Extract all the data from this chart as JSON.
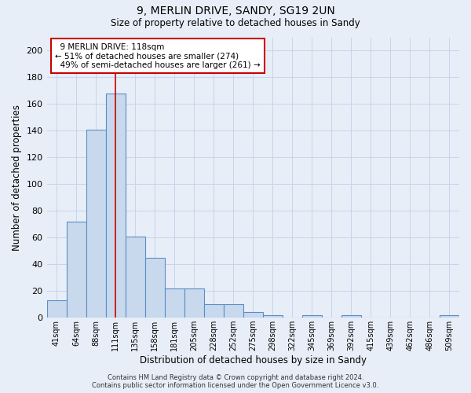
{
  "title1": "9, MERLIN DRIVE, SANDY, SG19 2UN",
  "title2": "Size of property relative to detached houses in Sandy",
  "xlabel": "Distribution of detached houses by size in Sandy",
  "ylabel": "Number of detached properties",
  "bar_labels": [
    "41sqm",
    "64sqm",
    "88sqm",
    "111sqm",
    "135sqm",
    "158sqm",
    "181sqm",
    "205sqm",
    "228sqm",
    "252sqm",
    "275sqm",
    "298sqm",
    "322sqm",
    "345sqm",
    "369sqm",
    "392sqm",
    "415sqm",
    "439sqm",
    "462sqm",
    "486sqm",
    "509sqm"
  ],
  "bar_values": [
    13,
    72,
    141,
    168,
    61,
    45,
    22,
    22,
    10,
    10,
    4,
    2,
    0,
    2,
    0,
    2,
    0,
    0,
    0,
    0,
    2
  ],
  "bar_color": "#c8d9ee",
  "bar_edge_color": "#5b8ec4",
  "bar_edge_width": 0.8,
  "vline_x": 3.0,
  "vline_color": "#cc0000",
  "annotation_text": "  9 MERLIN DRIVE: 118sqm\n← 51% of detached houses are smaller (274)\n  49% of semi-detached houses are larger (261) →",
  "annotation_box_color": "#ffffff",
  "annotation_box_edge": "#cc0000",
  "ylim": [
    0,
    210
  ],
  "yticks": [
    0,
    20,
    40,
    60,
    80,
    100,
    120,
    140,
    160,
    180,
    200
  ],
  "grid_color": "#c8d4e8",
  "bg_color": "#e8eef8",
  "footer": "Contains HM Land Registry data © Crown copyright and database right 2024.\nContains public sector information licensed under the Open Government Licence v3.0."
}
